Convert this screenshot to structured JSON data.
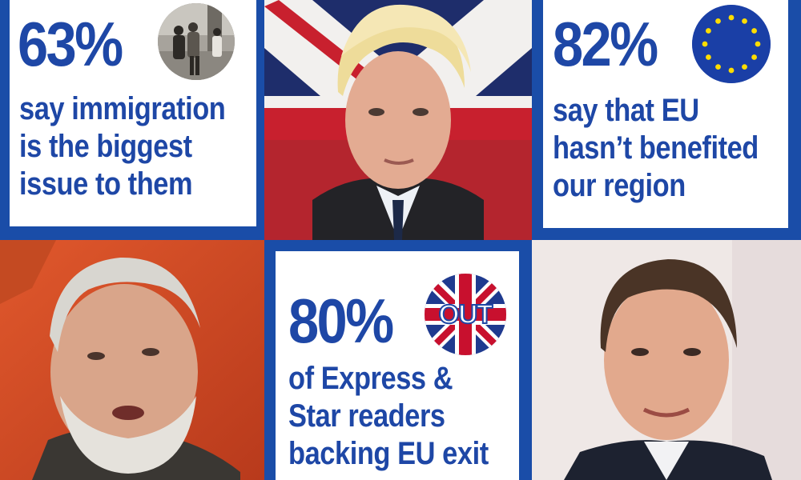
{
  "colors": {
    "brand_blue": "#1a4da8",
    "text_blue": "#1e47a6",
    "eu_yellow": "#ffdd00",
    "union_red": "#c8102e"
  },
  "panels": {
    "immigration": {
      "percent": "63%",
      "lines": [
        "say immigration",
        "is the biggest",
        "issue to them"
      ],
      "icon": "street-crowd-photo-icon"
    },
    "eu_benefit": {
      "percent": "82%",
      "lines": [
        "say that EU",
        "hasn’t benefited",
        "our region"
      ],
      "icon": "eu-flag-icon"
    },
    "readers": {
      "percent": "80%",
      "badge_text": "OUT",
      "lines": [
        "of Express &",
        "Star readers",
        "backing EU exit"
      ],
      "icon": "union-jack-out-icon"
    }
  },
  "photos": [
    {
      "subject": "man-with-blond-hair-union-flag-backdrop"
    },
    {
      "subject": "grey-bearded-man-speaking-red-backdrop"
    },
    {
      "subject": "dark-haired-man-in-suit-light-backdrop"
    }
  ]
}
